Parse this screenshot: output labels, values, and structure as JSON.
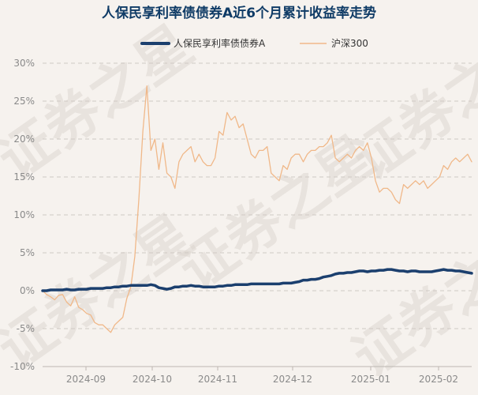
{
  "chart_data": {
    "type": "line",
    "title": "人保民享利率债债券A近6个月累计收益率走势",
    "xlabel": "",
    "ylabel": "",
    "ylim": [
      -10,
      30
    ],
    "yticks": [
      "30%",
      "25%",
      "20%",
      "15%",
      "10%",
      "5%",
      "0%",
      "-5%",
      "-10%"
    ],
    "xticks": [
      "2024-09",
      "2024-10",
      "2024-11",
      "2024-12",
      "2025-01",
      "2025-02"
    ],
    "grid": true,
    "legend_position": "top-center",
    "series": [
      {
        "name": "人保民享利率债债券A",
        "color": "#1b3f6e",
        "values": [
          0.0,
          0.0,
          0.1,
          0.1,
          0.1,
          0.1,
          0.2,
          0.1,
          0.1,
          0.2,
          0.2,
          0.2,
          0.3,
          0.3,
          0.3,
          0.3,
          0.4,
          0.4,
          0.5,
          0.5,
          0.6,
          0.6,
          0.7,
          0.7,
          0.7,
          0.7,
          0.7,
          0.8,
          0.7,
          0.4,
          0.3,
          0.2,
          0.3,
          0.5,
          0.5,
          0.6,
          0.6,
          0.7,
          0.6,
          0.6,
          0.5,
          0.5,
          0.5,
          0.5,
          0.6,
          0.6,
          0.7,
          0.7,
          0.8,
          0.8,
          0.8,
          0.8,
          0.9,
          0.9,
          0.9,
          0.9,
          0.9,
          0.9,
          0.9,
          0.9,
          1.0,
          1.0,
          1.0,
          1.1,
          1.2,
          1.4,
          1.4,
          1.5,
          1.5,
          1.6,
          1.8,
          1.9,
          2.0,
          2.2,
          2.3,
          2.3,
          2.4,
          2.4,
          2.5,
          2.6,
          2.6,
          2.5,
          2.6,
          2.6,
          2.7,
          2.7,
          2.8,
          2.8,
          2.7,
          2.6,
          2.6,
          2.5,
          2.6,
          2.6,
          2.5,
          2.5,
          2.5,
          2.5,
          2.6,
          2.7,
          2.8,
          2.7,
          2.7,
          2.6,
          2.6,
          2.5,
          2.4,
          2.3
        ]
      },
      {
        "name": "沪深300",
        "color": "#f0b889",
        "values": [
          0.0,
          -0.5,
          -0.8,
          -1.2,
          -0.6,
          -0.5,
          -1.5,
          -2.0,
          -0.8,
          -2.2,
          -2.5,
          -3.0,
          -3.2,
          -4.2,
          -4.5,
          -4.5,
          -5.0,
          -5.5,
          -4.5,
          -4.0,
          -3.5,
          -1.0,
          0.5,
          4.5,
          12.0,
          21.0,
          27.0,
          18.5,
          20.0,
          16.0,
          19.5,
          15.5,
          15.0,
          13.5,
          17.0,
          18.0,
          18.5,
          19.0,
          17.0,
          18.0,
          17.0,
          16.5,
          16.5,
          17.5,
          21.0,
          20.5,
          23.5,
          22.5,
          23.0,
          21.5,
          22.0,
          20.0,
          18.0,
          17.5,
          18.5,
          18.5,
          19.0,
          15.5,
          15.0,
          14.5,
          16.5,
          16.0,
          17.5,
          18.0,
          18.0,
          17.0,
          18.0,
          18.5,
          18.5,
          19.0,
          19.0,
          19.5,
          20.5,
          17.5,
          17.0,
          17.5,
          18.0,
          17.5,
          18.5,
          19.0,
          18.5,
          19.5,
          17.5,
          14.5,
          13.0,
          13.5,
          13.5,
          13.0,
          12.0,
          11.5,
          14.0,
          13.5,
          14.0,
          14.5,
          14.0,
          14.5,
          13.5,
          14.0,
          14.5,
          15.0,
          16.5,
          16.0,
          17.0,
          17.5,
          17.0,
          17.5,
          18.0,
          17.0
        ]
      }
    ]
  },
  "watermark": "证券之星"
}
